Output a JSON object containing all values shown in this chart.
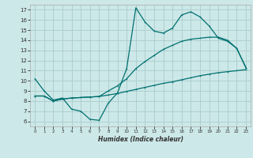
{
  "title": "",
  "xlabel": "Humidex (Indice chaleur)",
  "bg_color": "#cce8e8",
  "grid_color": "#aacccc",
  "line_color": "#007070",
  "xlim": [
    -0.5,
    23.5
  ],
  "ylim": [
    5.5,
    17.5
  ],
  "xticks": [
    0,
    1,
    2,
    3,
    4,
    5,
    6,
    7,
    8,
    9,
    10,
    11,
    12,
    13,
    14,
    15,
    16,
    17,
    18,
    19,
    20,
    21,
    22,
    23
  ],
  "yticks": [
    6,
    7,
    8,
    9,
    10,
    11,
    12,
    13,
    14,
    15,
    16,
    17
  ],
  "line1_x": [
    0,
    1,
    2,
    3,
    4,
    5,
    6,
    7,
    8,
    9,
    10,
    11,
    12,
    13,
    14,
    15,
    16,
    17,
    18,
    19,
    20,
    21,
    22,
    23
  ],
  "line1_y": [
    10.2,
    9.0,
    8.1,
    8.3,
    7.2,
    7.0,
    6.2,
    6.1,
    7.8,
    8.8,
    11.2,
    17.2,
    15.8,
    14.9,
    14.7,
    15.2,
    16.5,
    16.8,
    16.3,
    15.4,
    14.2,
    13.9,
    13.2,
    11.3
  ],
  "line2_x": [
    0,
    1,
    2,
    3,
    4,
    5,
    6,
    7,
    8,
    9,
    10,
    11,
    12,
    13,
    14,
    15,
    16,
    17,
    18,
    19,
    20,
    21,
    22,
    23
  ],
  "line2_y": [
    8.5,
    8.5,
    8.0,
    8.2,
    8.3,
    8.35,
    8.4,
    8.45,
    8.6,
    8.75,
    8.95,
    9.15,
    9.35,
    9.55,
    9.75,
    9.9,
    10.1,
    10.3,
    10.5,
    10.65,
    10.8,
    10.9,
    11.0,
    11.1
  ],
  "line3_x": [
    0,
    1,
    2,
    3,
    4,
    5,
    6,
    7,
    8,
    9,
    10,
    11,
    12,
    13,
    14,
    15,
    16,
    17,
    18,
    19,
    20,
    21,
    22,
    23
  ],
  "line3_y": [
    8.5,
    8.5,
    8.0,
    8.2,
    8.3,
    8.35,
    8.4,
    8.45,
    9.0,
    9.5,
    10.2,
    11.2,
    11.9,
    12.5,
    13.1,
    13.5,
    13.9,
    14.1,
    14.2,
    14.3,
    14.3,
    14.0,
    13.2,
    11.3
  ]
}
